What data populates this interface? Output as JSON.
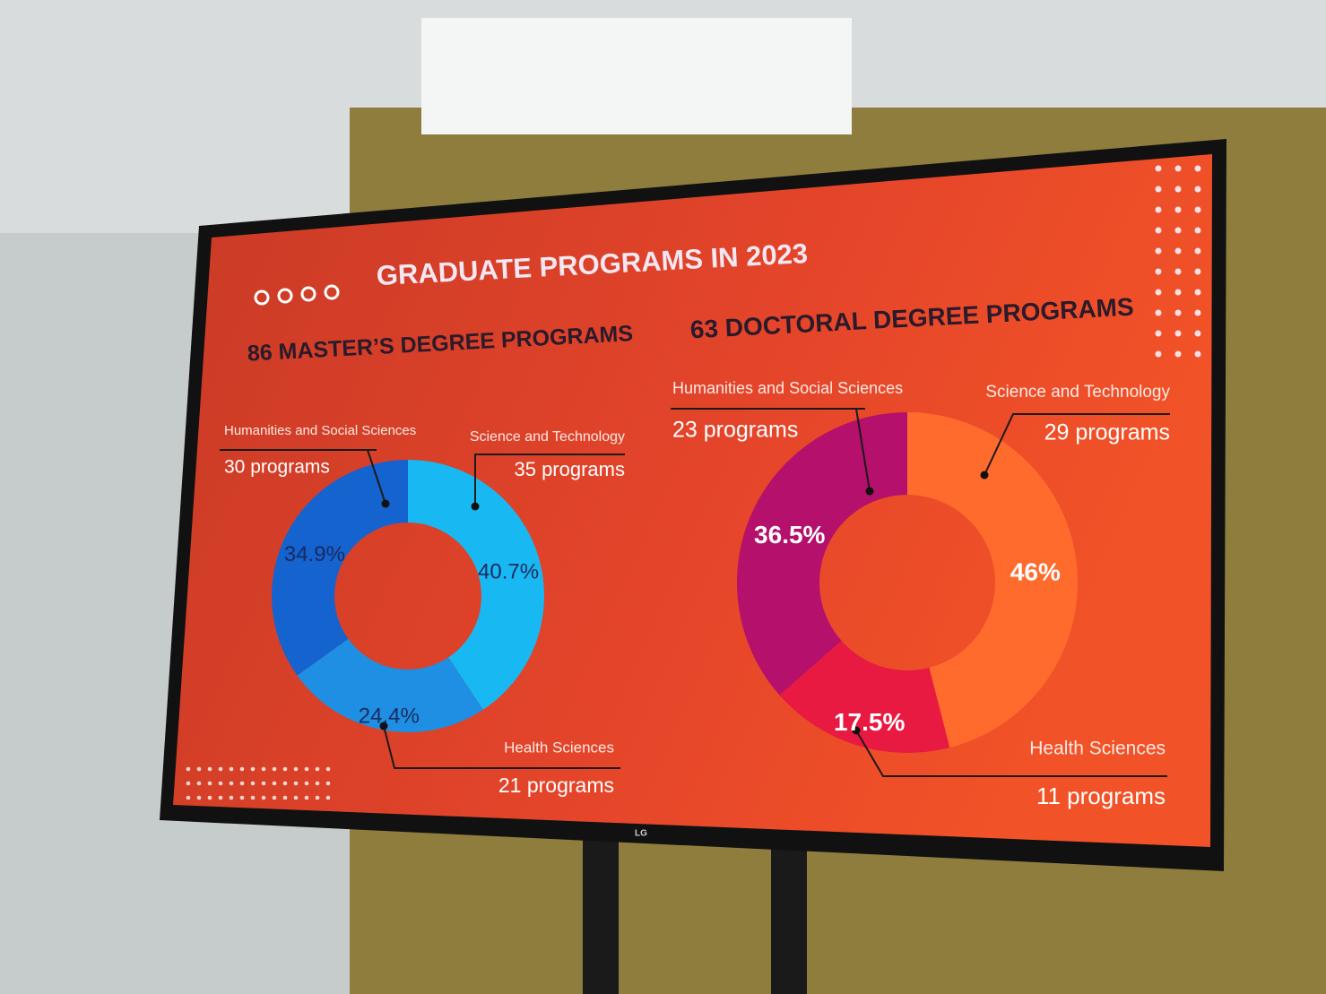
{
  "title": "GRADUATE PROGRAMS IN 2023",
  "chart_data": [
    {
      "type": "donut",
      "title": "86 MASTER’S DEGREE PROGRAMS",
      "categories": [
        "Science and Technology",
        "Health Sciences",
        "Humanities and Social Sciences"
      ],
      "values": [
        40.7,
        24.4,
        34.9
      ],
      "value_labels": [
        "40.7%",
        "24.4%",
        "34.9%"
      ],
      "program_labels": [
        "35 programs",
        "21 programs",
        "30 programs"
      ],
      "colors": [
        "#18b9f2",
        "#1e8fe3",
        "#1463cf"
      ],
      "label_color": "#1b2a5e"
    },
    {
      "type": "donut",
      "title": "63 DOCTORAL DEGREE PROGRAMS",
      "categories": [
        "Science and Technology",
        "Health Sciences",
        "Humanities and Social Sciences"
      ],
      "values": [
        46,
        17.5,
        36.5
      ],
      "value_labels": [
        "46%",
        "17.5%",
        "36.5%"
      ],
      "program_labels": [
        "29 programs",
        "11 programs",
        "23 programs"
      ],
      "colors": [
        "#ff6b2c",
        "#e81a42",
        "#b5106b"
      ],
      "label_color": "#ffffff"
    }
  ]
}
